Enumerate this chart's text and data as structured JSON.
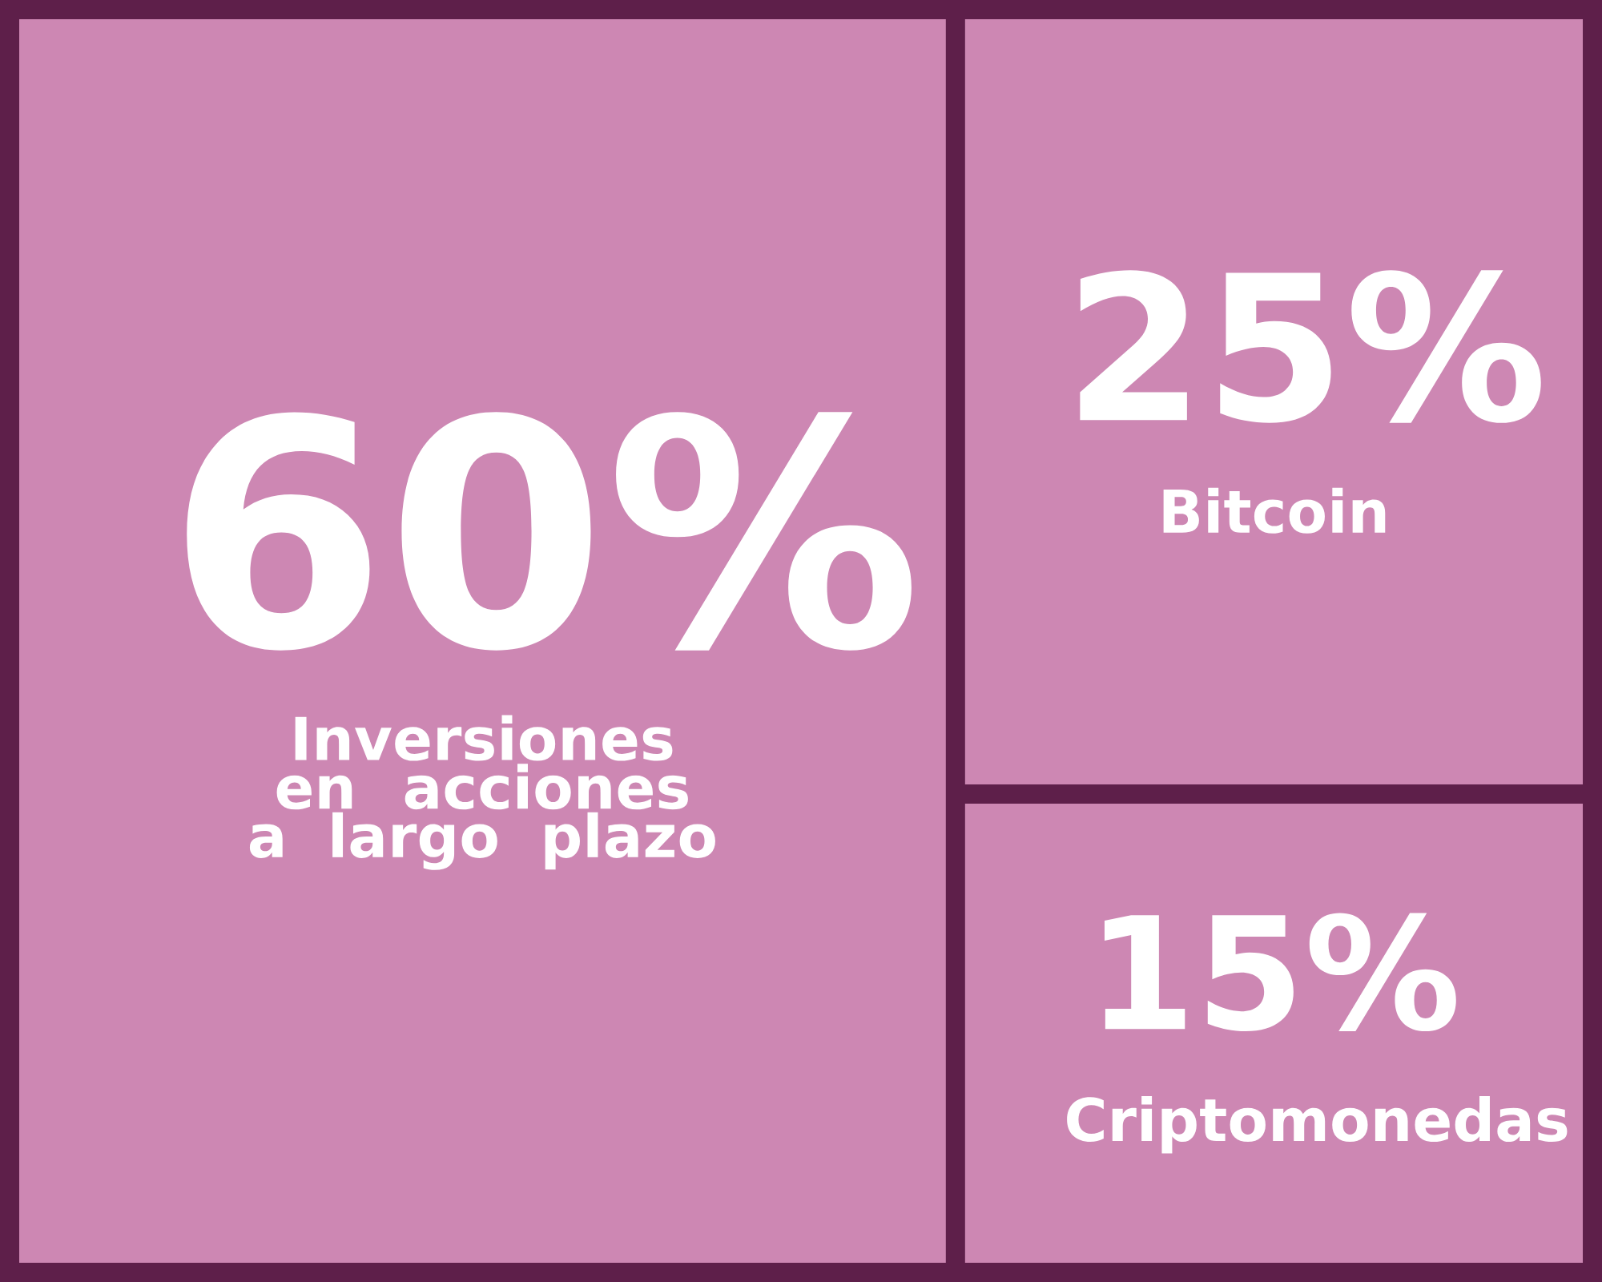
{
  "chart_data": {
    "type": "other",
    "categories": [
      "Inversiones en acciones a largo plazo",
      "Bitcoin",
      "Criptomonedas"
    ],
    "values": [
      60,
      25,
      15
    ],
    "value_labels": [
      "60%",
      "25%",
      "15%"
    ],
    "colors": [
      "#cd87b3",
      "#cd87b3",
      "#cd87b3"
    ]
  }
}
